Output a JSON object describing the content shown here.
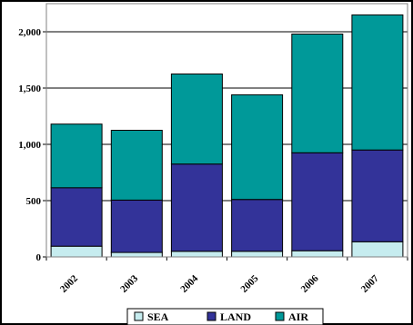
{
  "chart_data": {
    "type": "bar",
    "stacked": true,
    "categories": [
      "2002",
      "2003",
      "2004",
      "2005",
      "2006",
      "2007"
    ],
    "series": [
      {
        "name": "SEA",
        "color": "#c6ecef",
        "values": [
          95,
          40,
          50,
          50,
          55,
          135
        ]
      },
      {
        "name": "LAND",
        "color": "#333399",
        "values": [
          520,
          465,
          775,
          460,
          870,
          815
        ]
      },
      {
        "name": "AIR",
        "color": "#009999",
        "values": [
          565,
          620,
          800,
          930,
          1055,
          1200
        ]
      }
    ],
    "title": "",
    "xlabel": "",
    "ylabel": "",
    "ylim": [
      0,
      2250
    ],
    "yticks": [
      0,
      500,
      1000,
      1500,
      2000
    ],
    "ytick_labels": [
      "0",
      "500",
      "1,000",
      "1,500",
      "2,000"
    ],
    "grid": true,
    "grid_color": "#000000",
    "legend_position": "bottom"
  }
}
